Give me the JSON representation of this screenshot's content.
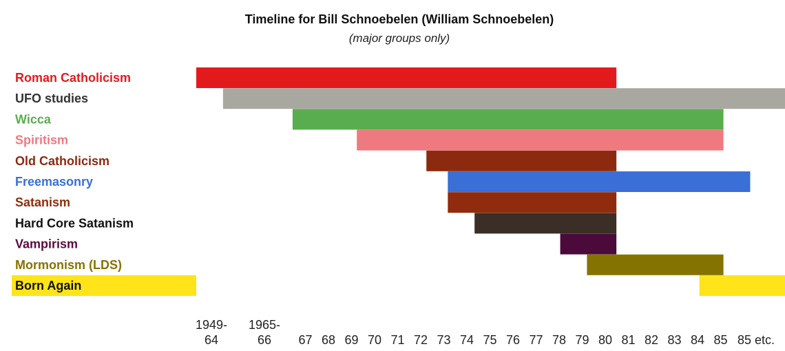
{
  "chart_data": {
    "type": "bar",
    "subtype": "timeline-gantt",
    "title": "Timeline for Bill Schnoebelen (William Schnoebelen)",
    "subtitle": "(major groups only)",
    "x_ticks": [
      {
        "top": "1949-",
        "bottom": "64"
      },
      {
        "top": "1965-",
        "bottom": "66"
      },
      {
        "top": "",
        "bottom": "67"
      },
      {
        "top": "",
        "bottom": "68"
      },
      {
        "top": "",
        "bottom": "69"
      },
      {
        "top": "",
        "bottom": "70"
      },
      {
        "top": "",
        "bottom": "71"
      },
      {
        "top": "",
        "bottom": "72"
      },
      {
        "top": "",
        "bottom": "73"
      },
      {
        "top": "",
        "bottom": "74"
      },
      {
        "top": "",
        "bottom": "75"
      },
      {
        "top": "",
        "bottom": "76"
      },
      {
        "top": "",
        "bottom": "77"
      },
      {
        "top": "",
        "bottom": "78"
      },
      {
        "top": "",
        "bottom": "79"
      },
      {
        "top": "",
        "bottom": "80"
      },
      {
        "top": "",
        "bottom": "81"
      },
      {
        "top": "",
        "bottom": "82"
      },
      {
        "top": "",
        "bottom": "83"
      },
      {
        "top": "",
        "bottom": "84"
      },
      {
        "top": "",
        "bottom": "85"
      },
      {
        "top": "",
        "bottom": "85 etc."
      }
    ],
    "series": [
      {
        "name": "Roman Catholicism",
        "color": "#e31a1c",
        "label_color": "#e31a1c",
        "start": 0,
        "end": 15.7
      },
      {
        "name": "UFO studies",
        "color": "#a8a8a0",
        "label_color": "#333333",
        "start": 1.0,
        "end": 22
      },
      {
        "name": "Wicca",
        "color": "#5aad4e",
        "label_color": "#5aad4e",
        "start": 3.6,
        "end": 19.7
      },
      {
        "name": "Spiritism",
        "color": "#ee7a80",
        "label_color": "#ee7a80",
        "start": 6.0,
        "end": 19.7
      },
      {
        "name": "Old Catholicism",
        "color": "#8b2a0e",
        "label_color": "#8b2a0e",
        "start": 8.6,
        "end": 15.7
      },
      {
        "name": "Freemasonry",
        "color": "#3a6fd8",
        "label_color": "#3a6fd8",
        "start": 9.4,
        "end": 20.7
      },
      {
        "name": "Satanism",
        "color": "#8f2c0d",
        "label_color": "#8f2c0d",
        "start": 9.4,
        "end": 15.7
      },
      {
        "name": "Hard Core Satanism",
        "color": "#3a2e26",
        "label_color": "#111111",
        "start": 10.4,
        "end": 15.7
      },
      {
        "name": "Vampirism",
        "color": "#4a0a3a",
        "label_color": "#5a0a40",
        "start": 13.6,
        "end": 15.7
      },
      {
        "name": "Mormonism (LDS)",
        "color": "#857300",
        "label_color": "#857300",
        "start": 14.6,
        "end": 19.7
      },
      {
        "name": "Born Again",
        "color": "#ffe41a",
        "label_color": "#111111",
        "start": 18.8,
        "end": 22,
        "label_highlight": true
      }
    ],
    "grid": false,
    "legend": "left (row labels)"
  }
}
